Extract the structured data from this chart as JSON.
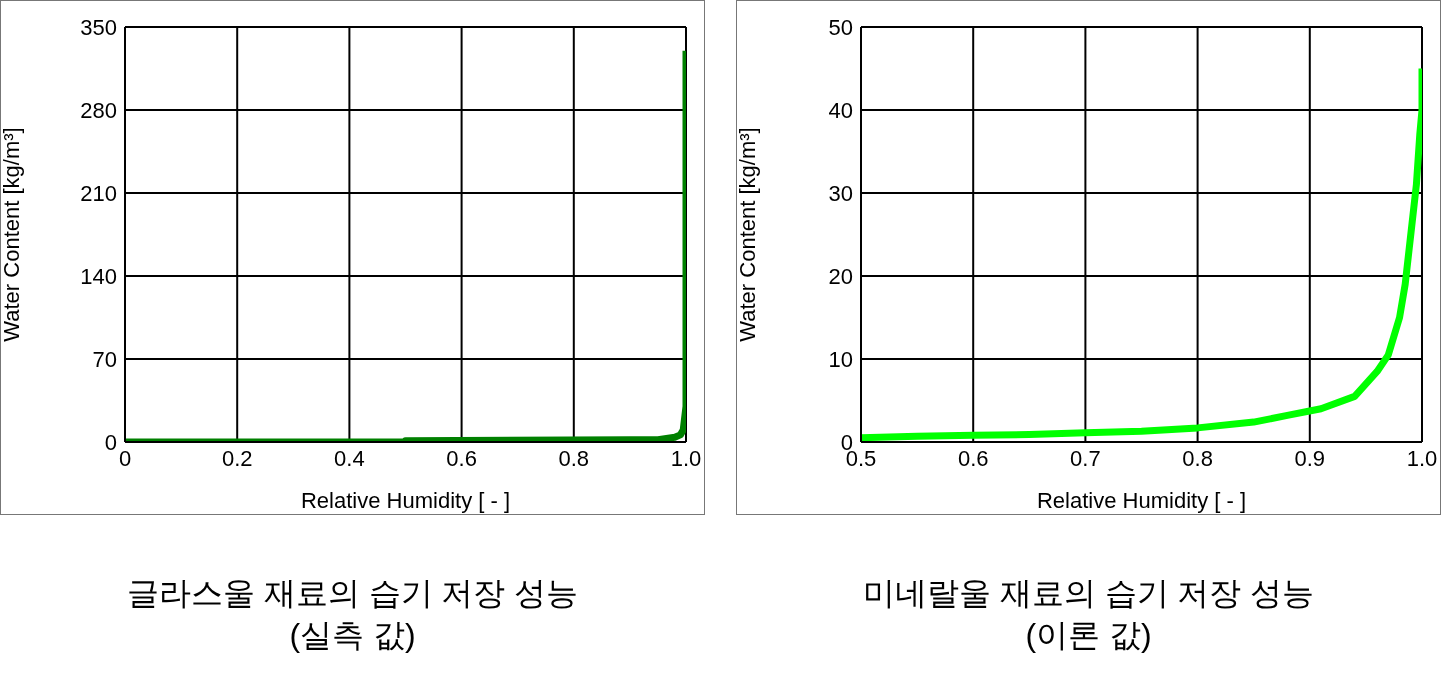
{
  "chart_data": [
    {
      "type": "line",
      "title": "글라스울 재료의 습기 저장 성능",
      "subtitle": "(실측 값)",
      "xlabel": "Relative Humidity [ - ]",
      "ylabel": "Water Content [kg/m³]",
      "xlim": [
        0,
        1
      ],
      "xticks": [
        0,
        0.2,
        0.4,
        0.6,
        0.8,
        {
          "value": 1,
          "label": "1.0"
        }
      ],
      "ylim": [
        0,
        350
      ],
      "yticks": [
        0,
        70,
        140,
        210,
        280,
        350
      ],
      "grid": true,
      "legend": false,
      "marker": "none",
      "line_style": "solid",
      "series": [
        {
          "color": "#008000",
          "x": [
            0,
            0.5,
            0.5,
            0.9,
            0.95,
            0.98,
            0.99,
            0.995,
            1,
            1
          ],
          "values": [
            0,
            0,
            1,
            2,
            2,
            4,
            6,
            10,
            30,
            330
          ]
        }
      ]
    },
    {
      "type": "line",
      "title": "미네랄울 재료의 습기 저장 성능",
      "subtitle": "(이론 값)",
      "xlabel": "Relative Humidity [ - ]",
      "ylabel": "Water Content [kg/m³]",
      "xlim": [
        0.5,
        1
      ],
      "xticks": [
        0.5,
        0.6,
        0.7,
        0.8,
        0.9,
        {
          "value": 1,
          "label": "1.0"
        }
      ],
      "ylim": [
        0,
        50
      ],
      "yticks": [
        0,
        10,
        20,
        30,
        40,
        50
      ],
      "grid": true,
      "legend": false,
      "marker": "none",
      "line_style": "solid",
      "series": [
        {
          "color": "#00ff00",
          "x": [
            0.5,
            0.55,
            0.6,
            0.65,
            0.7,
            0.75,
            0.8,
            0.85,
            0.88,
            0.91,
            0.94,
            0.96,
            0.97,
            0.98,
            0.985,
            0.99,
            0.995,
            0.998,
            1,
            1
          ],
          "values": [
            0.5,
            0.7,
            0.8,
            0.9,
            1.1,
            1.3,
            1.7,
            2.4,
            3.2,
            4,
            5.5,
            8.5,
            10.5,
            15,
            19,
            25,
            31,
            37,
            40,
            45
          ]
        }
      ]
    }
  ]
}
